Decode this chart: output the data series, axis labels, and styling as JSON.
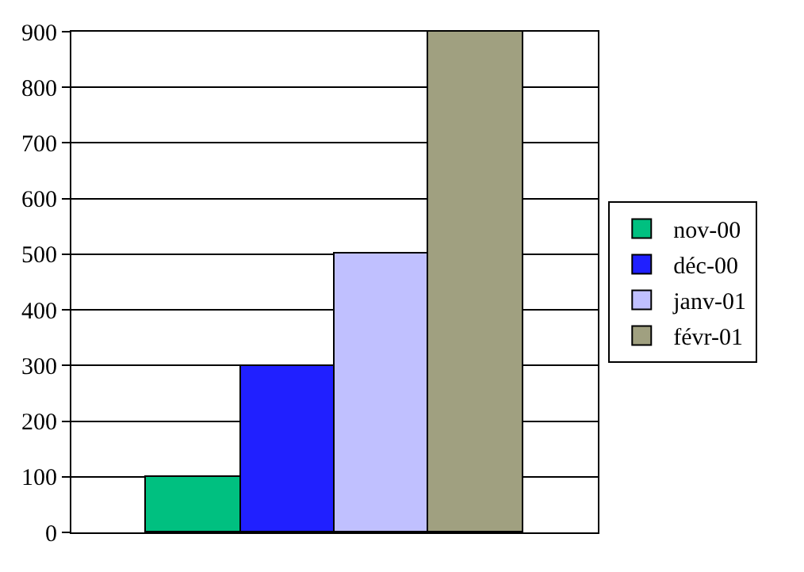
{
  "chart_data": {
    "type": "bar",
    "categories": [
      null
    ],
    "series": [
      {
        "name": "nov-00",
        "color": "#00c080",
        "values": [
          100
        ]
      },
      {
        "name": "déc-00",
        "color": "#2020ff",
        "values": [
          300
        ]
      },
      {
        "name": "janv-01",
        "color": "#c0c0ff",
        "values": [
          500
        ]
      },
      {
        "name": "févr-01",
        "color": "#a0a080",
        "values": [
          900
        ]
      }
    ],
    "ylim": [
      0,
      900
    ],
    "yticks": [
      0,
      100,
      200,
      300,
      400,
      500,
      600,
      700,
      800,
      900
    ],
    "grid": "y",
    "legend": "right"
  }
}
